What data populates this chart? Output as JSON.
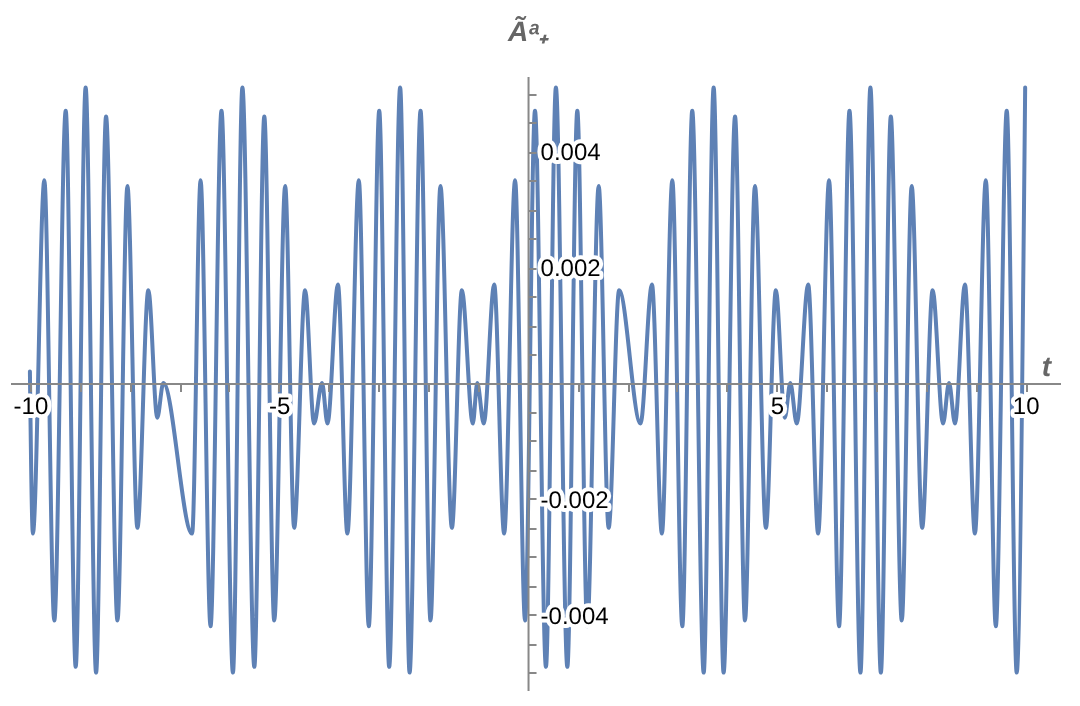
{
  "chart_data": {
    "type": "line",
    "xlabel": "t",
    "ylabel": "Ãᵃ₊",
    "x": [
      -10,
      -9.94,
      -9.71,
      -9.51,
      -9.28,
      -9.08,
      -8.88,
      -8.67,
      -8.47,
      -8.24,
      -8.04,
      -7.84,
      -7.62,
      -7.44,
      -7.32,
      -6.74,
      -6.57,
      -6.37,
      -6.15,
      -5.92,
      -5.73,
      -5.49,
      -5.29,
      -5.09,
      -4.87,
      -4.69,
      -4.47,
      -4.29,
      -4.13,
      -4.02,
      -3.81,
      -3.62,
      -3.39,
      -3.19,
      -2.98,
      -2.78,
      -2.56,
      -2.37,
      -2.15,
      -1.95,
      -1.75,
      -1.52,
      -1.32,
      -1.1,
      -1.01,
      -0.88,
      -0.67,
      -0.47,
      -0.25,
      -0.05,
      0.15,
      0.37,
      0.57,
      0.8,
      1,
      1.2,
      1.43,
      1.63,
      1.84,
      2.27,
      2.5,
      2.7,
      2.91,
      3.11,
      3.31,
      3.54,
      3.74,
      3.94,
      4.17,
      4.37,
      4.57,
      4.79,
      4.99,
      5.17,
      5.28,
      5.41,
      5.64,
      5.84,
      6.06,
      6.26,
      6.47,
      6.69,
      6.89,
      7.1,
      7.3,
      7.52,
      7.72,
      7.93,
      8.14,
      8.35,
      8.47,
      8.59,
      8.79,
      8.99,
      9.21,
      9.41,
      9.63,
      9.83,
      10
    ],
    "series": [
      {
        "color": "#5e81b5",
        "values": [
          0.0002,
          -0.0026,
          0.0035,
          -0.0041,
          0.0047,
          -0.0049,
          0.0051,
          -0.005,
          0.0046,
          -0.0041,
          0.0034,
          -0.0025,
          0.0016,
          -0.0006,
          0.0,
          -0.0026,
          0.0035,
          -0.0042,
          0.0047,
          -0.005,
          0.0051,
          -0.0049,
          0.0046,
          -0.0041,
          0.0034,
          -0.0025,
          0.0016,
          -0.0007,
          0.0,
          -0.0007,
          0.0017,
          -0.0026,
          0.0035,
          -0.0042,
          0.0047,
          -0.0049,
          0.0051,
          -0.005,
          0.0047,
          -0.0041,
          0.0034,
          -0.0025,
          0.0016,
          -0.0007,
          0.0,
          -0.0007,
          0.0017,
          -0.0026,
          0.0035,
          -0.0041,
          0.0047,
          -0.0049,
          0.0051,
          -0.0049,
          0.0047,
          -0.0042,
          0.0034,
          -0.0025,
          0.0016,
          -0.0007,
          0.0017,
          -0.0026,
          0.0035,
          -0.0042,
          0.0047,
          -0.005,
          0.0051,
          -0.005,
          0.0046,
          -0.0041,
          0.0034,
          -0.0025,
          0.0016,
          -0.0006,
          0.0,
          -0.0007,
          0.0017,
          -0.0026,
          0.0035,
          -0.0042,
          0.0047,
          -0.005,
          0.0051,
          -0.005,
          0.0046,
          -0.0041,
          0.0034,
          -0.0025,
          0.0016,
          -0.0007,
          0.0,
          -0.0007,
          0.0017,
          -0.0026,
          0.0035,
          -0.0042,
          0.0047,
          -0.005,
          0.0051
        ]
      }
    ],
    "xlim": [
      -10.4,
      10.7
    ],
    "xticks": [
      -10,
      {
        "value": -9,
        "label": null
      },
      {
        "value": -8,
        "label": null
      },
      {
        "value": -7,
        "label": null
      },
      {
        "value": -6,
        "label": null
      },
      -5,
      {
        "value": -4,
        "label": null
      },
      {
        "value": -3,
        "label": null
      },
      {
        "value": -2,
        "label": null
      },
      {
        "value": -1,
        "label": null
      },
      {
        "value": 1,
        "label": null
      },
      {
        "value": 2,
        "label": null
      },
      {
        "value": 3,
        "label": null
      },
      {
        "value": 4,
        "label": null
      },
      5,
      {
        "value": 6,
        "label": null
      },
      {
        "value": 7,
        "label": null
      },
      {
        "value": 8,
        "label": null
      },
      {
        "value": 9,
        "label": null
      },
      10
    ],
    "ylim": [
      -0.0053,
      0.0053
    ],
    "yticks": [
      {
        "value": -0.005,
        "label": null
      },
      {
        "value": -0.0045,
        "label": null
      },
      -0.004,
      {
        "value": -0.0035,
        "label": null
      },
      {
        "value": -0.003,
        "label": null
      },
      {
        "value": -0.0025,
        "label": null
      },
      -0.002,
      {
        "value": -0.0015,
        "label": null
      },
      {
        "value": -0.001,
        "label": null
      },
      {
        "value": -0.0005,
        "label": null
      },
      {
        "value": 0.0005,
        "label": null
      },
      {
        "value": 0.001,
        "label": null
      },
      {
        "value": 0.0015,
        "label": null
      },
      0.002,
      {
        "value": 0.0025,
        "label": null
      },
      {
        "value": 0.003,
        "label": null
      },
      {
        "value": 0.0035,
        "label": null
      },
      0.004,
      {
        "value": 0.0045,
        "label": null
      },
      {
        "value": 0.005,
        "label": null
      }
    ],
    "grid": false,
    "marker": "none",
    "line_style": "solid"
  }
}
